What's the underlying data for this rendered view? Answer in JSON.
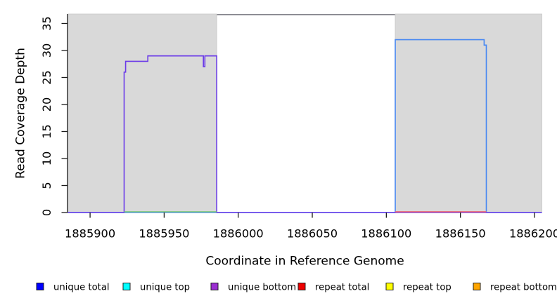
{
  "chart_data": {
    "type": "line",
    "subtype": "step-coverage-plot",
    "title": "",
    "xlabel": "Coordinate in Reference Genome",
    "ylabel": "Read Coverage Depth",
    "xlim": [
      1885885,
      1886205
    ],
    "ylim": [
      0,
      36.75
    ],
    "x_ticks": [
      1885900,
      1885950,
      1886000,
      1886050,
      1886100,
      1886150,
      1886200
    ],
    "y_ticks": [
      0,
      5,
      10,
      15,
      20,
      25,
      30,
      35
    ],
    "grid": false,
    "legend_position": "bottom",
    "plot_background": "#ffffff",
    "shaded_regions": [
      {
        "name": "left-shaded-region",
        "x1": 1885885,
        "x2": 1885985.5,
        "fill": "#d9d9d9",
        "stroke": "#c6c6c6"
      },
      {
        "name": "right-shaded-region",
        "x1": 1886106,
        "x2": 1886205,
        "fill": "#d9d9d9",
        "stroke": "#c6c6c6"
      }
    ],
    "series": [
      {
        "name": "unique total",
        "color": "#4687f2",
        "step_points": [
          [
            1885885,
            0
          ],
          [
            1886106,
            32
          ],
          [
            1886166,
            31
          ],
          [
            1886167.5,
            0
          ],
          [
            1886205,
            0
          ]
        ]
      },
      {
        "name": "unique bottom",
        "color": "#6b3be8",
        "step_points": [
          [
            1885885,
            0
          ],
          [
            1885923,
            26
          ],
          [
            1885924,
            28
          ],
          [
            1885939,
            29
          ],
          [
            1885976.5,
            27
          ],
          [
            1885977.5,
            29
          ],
          [
            1885985.5,
            0
          ],
          [
            1886205,
            0
          ]
        ]
      }
    ],
    "baseline_overlays": [
      {
        "name": "green-baseline-segment",
        "color": "#7fc87f",
        "x1": 1885923,
        "x2": 1885985.5,
        "value": 0
      },
      {
        "name": "red-baseline-segment",
        "color": "#ea6474",
        "x1": 1886106,
        "x2": 1886167.5,
        "value": 0
      }
    ],
    "legend": [
      {
        "label": "unique total",
        "color": "#0000ff"
      },
      {
        "label": "unique top",
        "color": "#00ffff"
      },
      {
        "label": "unique bottom",
        "color": "#9b2fd2"
      },
      {
        "label": "repeat total",
        "color": "#ee0000"
      },
      {
        "label": "repeat top",
        "color": "#ffff00"
      },
      {
        "label": "repeat bottom",
        "color": "#ffa500"
      }
    ],
    "colors": {
      "top_border": "#83838b",
      "axis": "#1c1c1c"
    }
  }
}
